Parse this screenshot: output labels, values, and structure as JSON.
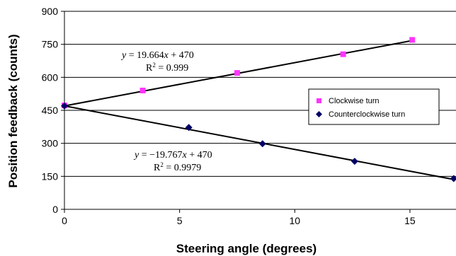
{
  "chart_data": {
    "type": "scatter",
    "xlabel": "Steering angle (degrees)",
    "ylabel": "Position feedback (counts)",
    "xlim": [
      0,
      17
    ],
    "ylim": [
      0,
      900
    ],
    "x_ticks": [
      "0",
      "5",
      "10",
      "15"
    ],
    "y_ticks": [
      "0",
      "150",
      "300",
      "450",
      "600",
      "750",
      "900"
    ],
    "grid": "horizontal",
    "legend_position": "right",
    "series": [
      {
        "name": "Clockwise turn",
        "color": "#ff33ff",
        "marker": "square",
        "x": [
          0,
          3.4,
          7.5,
          12.1,
          15.1
        ],
        "y": [
          472,
          540,
          620,
          705,
          770
        ],
        "trendline": {
          "slope": 19.664,
          "intercept": 470,
          "r2": "0.999",
          "eq_lhs": "y",
          "eq_rhs": " = 19.664",
          "eq_var": "x",
          "eq_tail": " + 470"
        }
      },
      {
        "name": "Counterclockwise turn",
        "color": "#000066",
        "marker": "diamond",
        "x": [
          0,
          5.4,
          8.6,
          12.6,
          16.9
        ],
        "y": [
          470,
          372,
          298,
          218,
          140
        ],
        "trendline": {
          "slope": -19.767,
          "intercept": 470,
          "r2": "0.9979",
          "eq_lhs": "y",
          "eq_rhs": " = −19.767",
          "eq_var": "x",
          "eq_tail": " + 470"
        }
      }
    ]
  }
}
